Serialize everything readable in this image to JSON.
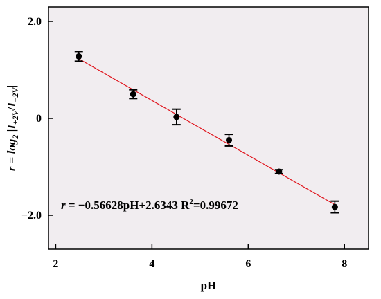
{
  "chart_data": {
    "type": "scatter",
    "xlabel": "pH",
    "ylabel_parts": {
      "lhs": "r",
      "eq": " = ",
      "log": "log",
      "log_sub": "2",
      "open": " |",
      "num": "I",
      "num_sub": "+2V",
      "slash": "/",
      "den": "I",
      "den_sub": "−2V",
      "close": "|"
    },
    "xlim": [
      1.85,
      8.5
    ],
    "ylim": [
      -2.7,
      2.3
    ],
    "x_ticks": [
      2,
      4,
      6,
      8
    ],
    "x_tick_labels": [
      "2",
      "4",
      "6",
      "8"
    ],
    "y_ticks": [
      2.0,
      0,
      -2.0
    ],
    "y_tick_labels": [
      "2.0",
      "0",
      "−2.0"
    ],
    "grid": false,
    "background_color": "#f1edf0",
    "fit_line_color": "#e0141c",
    "marker_color": "#000000",
    "points": [
      {
        "x": 2.48,
        "y": 1.28,
        "err": 0.1
      },
      {
        "x": 3.61,
        "y": 0.5,
        "err": 0.09
      },
      {
        "x": 4.51,
        "y": 0.03,
        "err": 0.16
      },
      {
        "x": 5.6,
        "y": -0.45,
        "err": 0.12
      },
      {
        "x": 6.64,
        "y": -1.1,
        "err": 0.04
      },
      {
        "x": 7.8,
        "y": -1.83,
        "err": 0.12
      }
    ],
    "fit": {
      "slope": -0.56628,
      "intercept": 2.6343,
      "x_range": [
        2.48,
        7.8
      ]
    },
    "annotation": {
      "r_symbol": "r",
      "equation_text": " = −0.56628pH+2.6343  R",
      "r2_sup": "2",
      "r2_value": "=0.99672"
    }
  }
}
